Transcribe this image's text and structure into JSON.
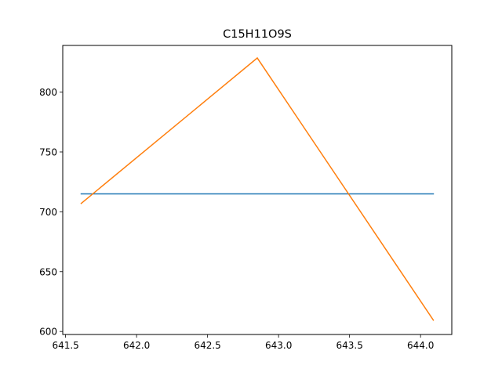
{
  "chart_data": {
    "type": "line",
    "title": "C15H11O9S",
    "xlabel": "",
    "ylabel": "",
    "xlim": [
      641.48,
      644.22
    ],
    "ylim": [
      597.5,
      839.0
    ],
    "x_ticks": [
      641.5,
      642.0,
      642.5,
      643.0,
      643.5,
      644.0
    ],
    "x_tick_labels": [
      "641.5",
      "642.0",
      "642.5",
      "643.0",
      "643.5",
      "644.0"
    ],
    "y_ticks": [
      600,
      650,
      700,
      750,
      800
    ],
    "y_tick_labels": [
      "600",
      "650",
      "700",
      "750",
      "800"
    ],
    "grid": false,
    "legend": "none",
    "series": [
      {
        "color": "#1f77b4",
        "x": [
          641.61,
          644.09
        ],
        "y": [
          715,
          715
        ]
      },
      {
        "color": "#ff7f0e",
        "x": [
          641.61,
          642.85,
          644.09
        ],
        "y": [
          707,
          828.5,
          609.5
        ]
      }
    ]
  }
}
